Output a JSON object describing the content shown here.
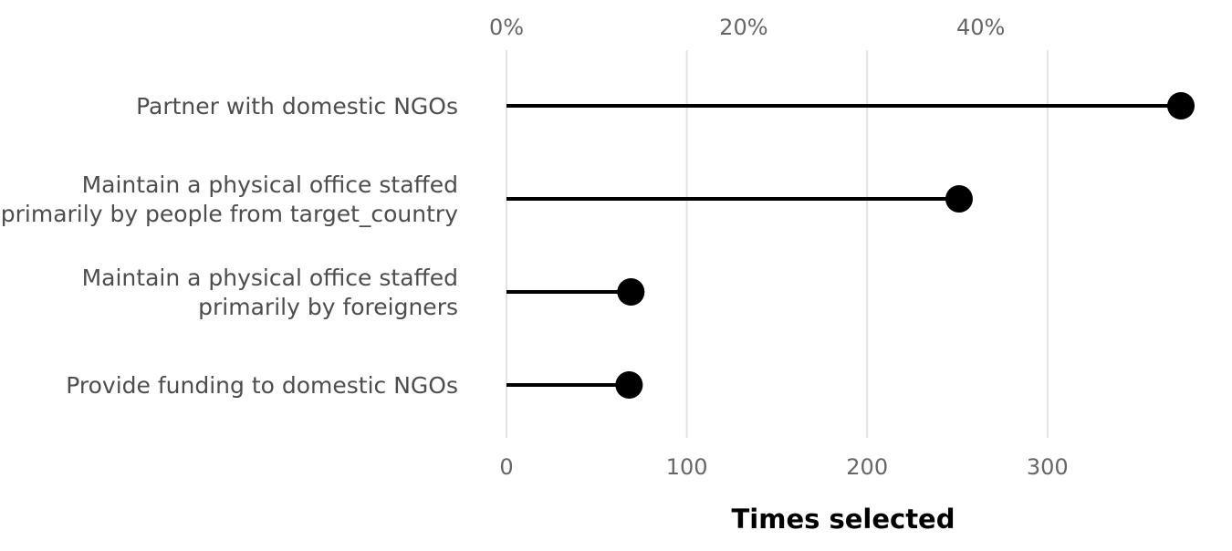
{
  "chart_data": {
    "type": "lollipop",
    "orientation": "horizontal",
    "categories": [
      "Partner with domestic NGOs",
      "Maintain a physical office staffed\nprimarily by people from target_country",
      "Maintain a physical office staffed\nprimarily by foreigners",
      "Provide funding to domestic NGOs"
    ],
    "values": [
      374,
      251,
      69,
      68
    ],
    "xlabel": "Times selected",
    "ylabel": "",
    "xlim": [
      0,
      374
    ],
    "x_ticks": [
      0,
      100,
      200,
      300
    ],
    "secondary_axis": {
      "position": "top",
      "ticks": [
        0,
        20,
        40
      ],
      "tick_labels": [
        "0%",
        "20%",
        "40%"
      ],
      "tick_positions_in_primary_units": [
        0,
        131.5,
        263
      ]
    },
    "grid": "vertical major lines",
    "legend": "none",
    "colors": {
      "mark": "#000000",
      "grid": "#e3e3e3",
      "tick_text": "#666666",
      "category_text": "#4d4d4d"
    }
  }
}
